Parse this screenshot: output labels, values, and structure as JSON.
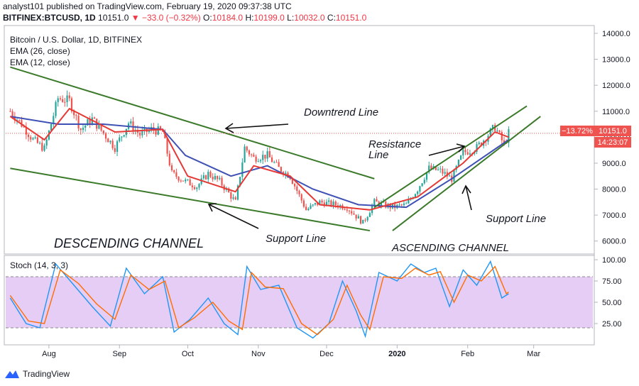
{
  "header": {
    "publisher": "analyst101 published on TradingView.com, February 19, 2020 09:37:38 UTC",
    "symbol": "BITFINEX:BTCUSD, 1D",
    "price": "10151.0",
    "change": "▼ −33.0 (−0.32%)",
    "o_label": "O:",
    "o": "10184.0",
    "h_label": "H:",
    "h": "10199.0",
    "l_label": "L:",
    "l": "10032.0",
    "c_label": "C:",
    "c": "10151.0"
  },
  "legend": {
    "title": "Bitcoin / U.S. Dollar, 1D, BITFINEX",
    "ema26": "EMA (26, close)",
    "ema12": "EMA (12, close)"
  },
  "annotations": {
    "downtrend": "Downtrend Line",
    "resistance_1": "Resistance",
    "resistance_2": "Line",
    "support_left": "Support Line",
    "support_right": "Support Line",
    "descending": "DESCENDING CHANNEL",
    "ascending": "ASCENDING CHANNEL"
  },
  "price_badges": {
    "pct": "−13.72%",
    "last": "10151.0",
    "countdown": "14:23:07"
  },
  "stoch_label": "Stoch (14, 3, 3)",
  "footer": {
    "brand": "TradingView"
  },
  "colors": {
    "up": "#26a69a",
    "down": "#ef5350",
    "ema26": "#3f51b5",
    "ema12": "#e53935",
    "trend": "#3b7a2a",
    "stoch_k": "#2196f3",
    "stoch_d": "#ff6d00",
    "stoch_band": "#e1c4f5"
  },
  "chart_data": [
    {
      "type": "candlestick",
      "title": "Bitcoin / U.S. Dollar, 1D, BITFINEX",
      "x_ticks": [
        "Aug",
        "Sep",
        "Oct",
        "Nov",
        "Dec",
        "2020",
        "Feb",
        "Mar"
      ],
      "y_ticks": [
        "6000.0",
        "7000.0",
        "8000.0",
        "9000.0",
        "10000.0",
        "11000.0",
        "12000.0",
        "13000.0",
        "14000.0"
      ],
      "ylim": [
        5500,
        14300
      ],
      "close_series": [
        [
          "2019-07-15",
          11000
        ],
        [
          "2019-07-20",
          10500
        ],
        [
          "2019-07-25",
          9900
        ],
        [
          "2019-07-30",
          9550
        ],
        [
          "2019-08-05",
          11500
        ],
        [
          "2019-08-10",
          11400
        ],
        [
          "2019-08-15",
          10300
        ],
        [
          "2019-08-20",
          10700
        ],
        [
          "2019-08-25",
          10150
        ],
        [
          "2019-08-30",
          9600
        ],
        [
          "2019-09-05",
          10550
        ],
        [
          "2019-09-10",
          10100
        ],
        [
          "2019-09-15",
          10300
        ],
        [
          "2019-09-20",
          10200
        ],
        [
          "2019-09-24",
          8600
        ],
        [
          "2019-09-30",
          8300
        ],
        [
          "2019-10-05",
          8100
        ],
        [
          "2019-10-10",
          8600
        ],
        [
          "2019-10-15",
          8300
        ],
        [
          "2019-10-22",
          7500
        ],
        [
          "2019-10-26",
          9600
        ],
        [
          "2019-10-30",
          9200
        ],
        [
          "2019-11-05",
          9300
        ],
        [
          "2019-11-10",
          8800
        ],
        [
          "2019-11-15",
          8500
        ],
        [
          "2019-11-22",
          7200
        ],
        [
          "2019-11-28",
          7500
        ],
        [
          "2019-12-05",
          7400
        ],
        [
          "2019-12-10",
          7300
        ],
        [
          "2019-12-17",
          6700
        ],
        [
          "2019-12-22",
          7500
        ],
        [
          "2019-12-30",
          7300
        ],
        [
          "2020-01-05",
          7400
        ],
        [
          "2020-01-10",
          8000
        ],
        [
          "2020-01-15",
          8800
        ],
        [
          "2020-01-20",
          8700
        ],
        [
          "2020-01-25",
          8400
        ],
        [
          "2020-01-30",
          9400
        ],
        [
          "2020-02-05",
          9600
        ],
        [
          "2020-02-10",
          10100
        ],
        [
          "2020-02-13",
          10400
        ],
        [
          "2020-02-17",
          9700
        ],
        [
          "2020-02-19",
          10151
        ]
      ],
      "ema26": [
        [
          "2019-07-15",
          10800
        ],
        [
          "2019-08-05",
          10500
        ],
        [
          "2019-08-25",
          10500
        ],
        [
          "2019-09-20",
          10300
        ],
        [
          "2019-09-30",
          9300
        ],
        [
          "2019-10-20",
          8500
        ],
        [
          "2019-11-05",
          8900
        ],
        [
          "2019-11-25",
          8000
        ],
        [
          "2019-12-15",
          7400
        ],
        [
          "2020-01-05",
          7300
        ],
        [
          "2020-01-25",
          8400
        ],
        [
          "2020-02-19",
          9900
        ]
      ],
      "ema12": [
        [
          "2019-07-15",
          10800
        ],
        [
          "2019-07-30",
          9900
        ],
        [
          "2019-08-10",
          11100
        ],
        [
          "2019-08-30",
          10200
        ],
        [
          "2019-09-20",
          10300
        ],
        [
          "2019-10-01",
          8500
        ],
        [
          "2019-10-22",
          7900
        ],
        [
          "2019-10-30",
          8900
        ],
        [
          "2019-11-15",
          8500
        ],
        [
          "2019-11-28",
          7400
        ],
        [
          "2019-12-20",
          7200
        ],
        [
          "2020-01-10",
          7700
        ],
        [
          "2020-01-30",
          9000
        ],
        [
          "2020-02-13",
          10200
        ],
        [
          "2020-02-19",
          10000
        ]
      ],
      "trendlines": {
        "downtrend_resistance": [
          [
            "2019-07-15",
            12700
          ],
          [
            "2019-12-22",
            8400
          ]
        ],
        "descending_support": [
          [
            "2019-07-15",
            8800
          ],
          [
            "2019-12-20",
            6400
          ]
        ],
        "ascending_resistance": [
          [
            "2019-12-22",
            7300
          ],
          [
            "2020-02-27",
            11200
          ]
        ],
        "ascending_support": [
          [
            "2019-12-30",
            6400
          ],
          [
            "2020-03-04",
            10800
          ]
        ]
      }
    },
    {
      "type": "line",
      "title": "Stoch (14, 3, 3)",
      "y_ticks": [
        "25.00",
        "50.00",
        "75.00",
        "100.00"
      ],
      "ylim": [
        0,
        105
      ],
      "band": [
        20,
        80
      ],
      "series": [
        {
          "values": [
            [
              "2019-07-15",
              55
            ],
            [
              "2019-07-22",
              25
            ],
            [
              "2019-07-28",
              20
            ],
            [
              "2019-08-04",
              95
            ],
            [
              "2019-08-12",
              70
            ],
            [
              "2019-08-20",
              45
            ],
            [
              "2019-08-28",
              22
            ],
            [
              "2019-09-04",
              90
            ],
            [
              "2019-09-12",
              60
            ],
            [
              "2019-09-20",
              80
            ],
            [
              "2019-09-25",
              15
            ],
            [
              "2019-10-02",
              30
            ],
            [
              "2019-10-10",
              55
            ],
            [
              "2019-10-17",
              25
            ],
            [
              "2019-10-23",
              12
            ],
            [
              "2019-10-27",
              92
            ],
            [
              "2019-11-02",
              65
            ],
            [
              "2019-11-10",
              70
            ],
            [
              "2019-11-18",
              20
            ],
            [
              "2019-11-25",
              8
            ],
            [
              "2019-12-02",
              25
            ],
            [
              "2019-12-08",
              75
            ],
            [
              "2019-12-14",
              40
            ],
            [
              "2019-12-18",
              10
            ],
            [
              "2019-12-24",
              85
            ],
            [
              "2020-01-01",
              75
            ],
            [
              "2020-01-07",
              95
            ],
            [
              "2020-01-13",
              85
            ],
            [
              "2020-01-18",
              90
            ],
            [
              "2020-01-24",
              45
            ],
            [
              "2020-01-30",
              88
            ],
            [
              "2020-02-05",
              70
            ],
            [
              "2020-02-11",
              98
            ],
            [
              "2020-02-16",
              55
            ],
            [
              "2020-02-19",
              60
            ]
          ]
        },
        {
          "values": [
            [
              "2019-07-15",
              58
            ],
            [
              "2019-07-23",
              28
            ],
            [
              "2019-07-30",
              25
            ],
            [
              "2019-08-06",
              88
            ],
            [
              "2019-08-14",
              72
            ],
            [
              "2019-08-22",
              48
            ],
            [
              "2019-08-30",
              30
            ],
            [
              "2019-09-06",
              82
            ],
            [
              "2019-09-14",
              65
            ],
            [
              "2019-09-21",
              75
            ],
            [
              "2019-09-27",
              20
            ],
            [
              "2019-10-04",
              32
            ],
            [
              "2019-10-12",
              50
            ],
            [
              "2019-10-19",
              28
            ],
            [
              "2019-10-25",
              18
            ],
            [
              "2019-10-29",
              85
            ],
            [
              "2019-11-04",
              68
            ],
            [
              "2019-11-12",
              66
            ],
            [
              "2019-11-20",
              25
            ],
            [
              "2019-11-27",
              12
            ],
            [
              "2019-12-04",
              30
            ],
            [
              "2019-12-10",
              70
            ],
            [
              "2019-12-16",
              35
            ],
            [
              "2019-12-20",
              18
            ],
            [
              "2019-12-26",
              80
            ],
            [
              "2020-01-03",
              78
            ],
            [
              "2020-01-09",
              90
            ],
            [
              "2020-01-15",
              82
            ],
            [
              "2020-01-20",
              86
            ],
            [
              "2020-01-26",
              50
            ],
            [
              "2020-02-01",
              82
            ],
            [
              "2020-02-07",
              75
            ],
            [
              "2020-02-13",
              92
            ],
            [
              "2020-02-18",
              60
            ],
            [
              "2020-02-19",
              62
            ]
          ]
        }
      ]
    }
  ]
}
